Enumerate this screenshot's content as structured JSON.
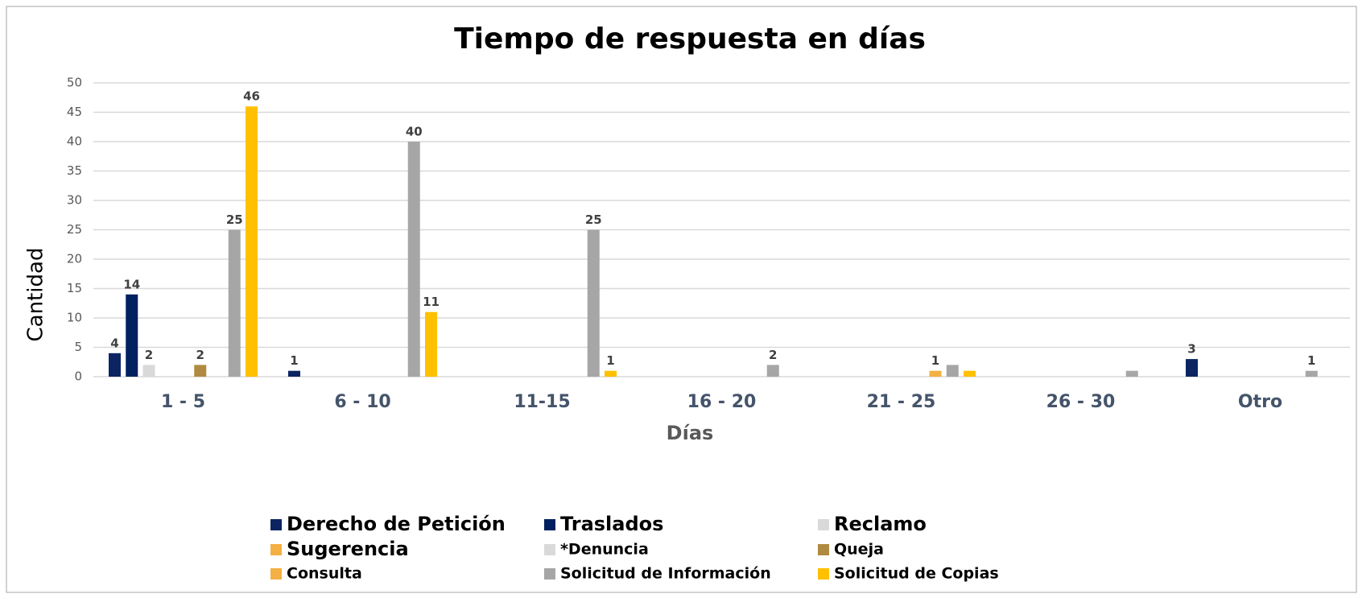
{
  "chart_data": {
    "type": "bar",
    "title": "Tiempo de respuesta en días",
    "x_label": "Días",
    "y_label": "Cantidad",
    "categories": [
      "1 - 5",
      "6 - 10",
      "11-15",
      "16 - 20",
      "21 - 25",
      "26 - 30",
      "Otro"
    ],
    "ylim": [
      0,
      50
    ],
    "yticks": [
      0,
      5,
      10,
      15,
      20,
      25,
      30,
      35,
      40,
      45,
      50
    ],
    "grid": true,
    "legend": "bottom",
    "series": [
      {
        "name": "Derecho de Petición",
        "color": "#0c2461",
        "values": [
          4,
          1,
          null,
          null,
          null,
          null,
          3
        ]
      },
      {
        "name": "Traslados",
        "color": "#002060",
        "values": [
          14,
          null,
          null,
          null,
          null,
          null,
          null
        ]
      },
      {
        "name": "Reclamo",
        "color": "#d9d9d9",
        "values": [
          2,
          null,
          null,
          null,
          null,
          null,
          null
        ]
      },
      {
        "name": "Sugerencia",
        "color": "#f4b042",
        "values": [
          null,
          null,
          null,
          null,
          null,
          null,
          null
        ]
      },
      {
        "name": "*Denuncia",
        "color": "#d9d9d9",
        "values": [
          null,
          null,
          null,
          null,
          null,
          null,
          null
        ]
      },
      {
        "name": "Queja",
        "color": "#b08a40",
        "values": [
          2,
          null,
          null,
          null,
          null,
          null,
          null
        ]
      },
      {
        "name": "Consulta",
        "color": "#f4b042",
        "values": [
          null,
          null,
          null,
          null,
          1,
          null,
          null
        ]
      },
      {
        "name": "Solicitud de Información",
        "color": "#a6a6a6",
        "values": [
          25,
          40,
          25,
          2,
          2,
          1,
          1
        ],
        "value_labels": [
          "25",
          "40",
          "25",
          "2",
          null,
          null,
          "1"
        ]
      },
      {
        "name": "Solicitud de Copias",
        "color": "#ffc000",
        "values": [
          46,
          11,
          1,
          null,
          1,
          null,
          null
        ],
        "value_labels": [
          "46",
          "11",
          "1",
          null,
          null,
          null,
          null
        ]
      }
    ]
  }
}
